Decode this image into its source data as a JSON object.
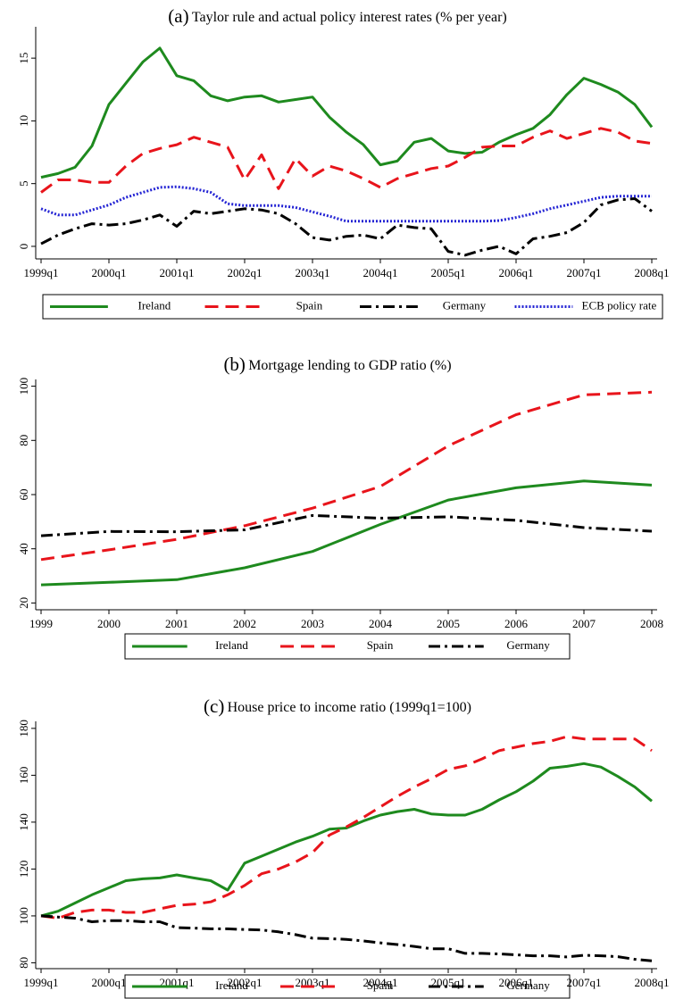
{
  "chart_data": [
    {
      "type": "line",
      "label": "(a)",
      "title": "Taylor rule and actual policy interest rates (% per year)",
      "categories": [
        "1999q1",
        null,
        null,
        null,
        "2000q1",
        null,
        null,
        null,
        "2001q1",
        null,
        null,
        null,
        "2002q1",
        null,
        null,
        null,
        "2003q1",
        null,
        null,
        null,
        "2004q1",
        null,
        null,
        null,
        "2005q1",
        null,
        null,
        null,
        "2006q1",
        null,
        null,
        null,
        "2007q1",
        null,
        null,
        null,
        "2008q1"
      ],
      "series": [
        {
          "name": "Ireland",
          "color": "#1e8a1e",
          "dash": "solid",
          "values": [
            5.5,
            5.8,
            6.3,
            8.0,
            11.3,
            13.0,
            14.7,
            15.8,
            13.6,
            13.2,
            12.0,
            11.6,
            11.9,
            12.0,
            11.5,
            11.7,
            11.9,
            10.3,
            9.1,
            8.1,
            6.5,
            6.8,
            8.3,
            8.6,
            7.6,
            7.4,
            7.5,
            8.3,
            8.9,
            9.4,
            10.5,
            12.1,
            13.4,
            12.9,
            12.3,
            11.3,
            9.5
          ]
        },
        {
          "name": "Spain",
          "color": "#e8141b",
          "dash": "dash",
          "values": [
            4.3,
            5.3,
            5.3,
            5.1,
            5.1,
            6.4,
            7.4,
            7.8,
            8.1,
            8.7,
            8.3,
            7.9,
            5.3,
            7.3,
            4.6,
            7.0,
            5.6,
            6.4,
            6.0,
            5.4,
            4.7,
            5.4,
            5.8,
            6.2,
            6.4,
            7.1,
            7.9,
            8.0,
            8.0,
            8.7,
            9.2,
            8.6,
            9.0,
            9.4,
            9.1,
            8.4,
            8.2
          ]
        },
        {
          "name": "Germany",
          "color": "#000000",
          "dash": "dashdot",
          "values": [
            0.2,
            0.9,
            1.4,
            1.8,
            1.7,
            1.8,
            2.1,
            2.5,
            1.6,
            2.8,
            2.6,
            2.8,
            3.0,
            2.9,
            2.6,
            1.8,
            0.7,
            0.5,
            0.8,
            0.9,
            0.6,
            1.7,
            1.5,
            1.4,
            -0.4,
            -0.7,
            -0.3,
            0.0,
            -0.6,
            0.6,
            0.8,
            1.1,
            1.9,
            3.3,
            3.7,
            3.8,
            2.8
          ]
        },
        {
          "name": "ECB policy rate",
          "color": "#2424d4",
          "dash": "dot",
          "values": [
            3.0,
            2.5,
            2.5,
            2.9,
            3.3,
            3.9,
            4.3,
            4.7,
            4.75,
            4.6,
            4.3,
            3.4,
            3.25,
            3.25,
            3.25,
            3.1,
            2.75,
            2.4,
            2.0,
            2.0,
            2.0,
            2.0,
            2.0,
            2.0,
            2.0,
            2.0,
            2.0,
            2.05,
            2.3,
            2.6,
            3.0,
            3.3,
            3.6,
            3.9,
            4.0,
            4.0,
            4.0
          ]
        }
      ],
      "ylim": [
        -1,
        17.5
      ],
      "yticks": [
        0,
        5,
        10,
        15
      ]
    },
    {
      "type": "line",
      "label": "(b)",
      "title": "Mortgage lending to GDP ratio (%)",
      "categories": [
        "1999",
        "2000",
        "2001",
        "2002",
        "2003",
        "2004",
        "2005",
        "2006",
        "2007",
        "2008"
      ],
      "series": [
        {
          "name": "Ireland",
          "color": "#1e8a1e",
          "dash": "solid",
          "values": [
            26.7,
            27.6,
            28.6,
            33,
            39,
            49,
            58,
            62.5,
            65,
            63.5
          ]
        },
        {
          "name": "Spain",
          "color": "#e8141b",
          "dash": "dash",
          "values": [
            36,
            39.6,
            43.5,
            48.5,
            55,
            63,
            78,
            89.5,
            96.8,
            97.8
          ]
        },
        {
          "name": "Germany",
          "color": "#000000",
          "dash": "dashdot",
          "values": [
            44.8,
            46.4,
            46.3,
            47,
            52.3,
            51.3,
            51.8,
            50.5,
            47.8,
            46.5
          ]
        }
      ],
      "ylim": [
        17.5,
        102.5
      ],
      "yticks": [
        20,
        40,
        60,
        80,
        100
      ]
    },
    {
      "type": "line",
      "label": "(c)",
      "title": "House price to income ratio (1999q1=100)",
      "categories": [
        "1999q1",
        null,
        null,
        null,
        "2000q1",
        null,
        null,
        null,
        "2001q1",
        null,
        null,
        null,
        "2002q1",
        null,
        null,
        null,
        "2003q1",
        null,
        null,
        null,
        "2004q1",
        null,
        null,
        null,
        "2005q1",
        null,
        null,
        null,
        "2006q1",
        null,
        null,
        null,
        "2007q1",
        null,
        null,
        null,
        "2008q1"
      ],
      "series": [
        {
          "name": "Ireland",
          "color": "#1e8a1e",
          "dash": "solid",
          "values": [
            100,
            102,
            105.5,
            109,
            112,
            115,
            115.8,
            116.2,
            117.5,
            116.2,
            115,
            111,
            122.5,
            125.5,
            128.5,
            131.5,
            134,
            137,
            137.5,
            140.5,
            143,
            144.5,
            145.5,
            143.5,
            143,
            143,
            145.5,
            149.5,
            153,
            157.5,
            163,
            163.8,
            165,
            163.5,
            159.5,
            155,
            149
          ]
        },
        {
          "name": "Spain",
          "color": "#e8141b",
          "dash": "dash",
          "values": [
            100,
            99,
            101.5,
            102.5,
            102.5,
            101.5,
            101.5,
            103,
            104.5,
            105,
            106,
            109,
            113,
            118,
            120,
            123,
            127,
            134.5,
            138,
            142,
            146.5,
            151,
            155,
            158.5,
            162.5,
            164,
            167,
            170.5,
            172,
            173.5,
            174.5,
            176.5,
            175.5,
            175.5,
            175.5,
            175.5,
            170.5
          ]
        },
        {
          "name": "Germany",
          "color": "#000000",
          "dash": "dashdot",
          "values": [
            100,
            99.5,
            99,
            97.5,
            98,
            98,
            97.5,
            97.5,
            95,
            94.8,
            94.5,
            94.5,
            94.2,
            94,
            93.2,
            92,
            90.5,
            90.3,
            90,
            89.3,
            88.5,
            87.8,
            87,
            86,
            86,
            84,
            84,
            83.8,
            83.4,
            83,
            83,
            82.5,
            83.2,
            83,
            82.6,
            81.5,
            80.8
          ]
        }
      ],
      "ylim": [
        77.5,
        183
      ],
      "yticks": [
        80,
        100,
        120,
        140,
        160,
        180
      ]
    }
  ]
}
